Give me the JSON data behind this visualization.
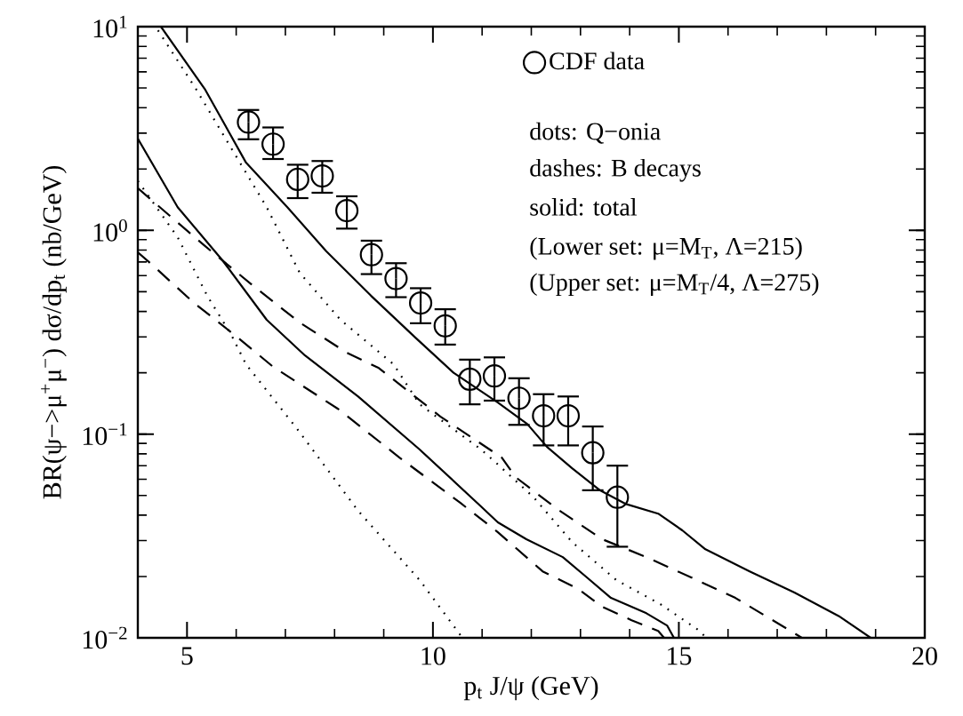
{
  "chart_data": {
    "type": "line",
    "xlabel": "p$_{t}$ J/ψ (GeV)",
    "ylabel": "BR(ψ−>μ$^{+}$μ$^{−}$) dσ/dp$_{t}$ (nb/GeV)",
    "xlim": [
      4,
      20
    ],
    "xticks": [
      5,
      10,
      15,
      20
    ],
    "ylim": [
      0.01,
      10
    ],
    "yticks": [
      {
        "value": 0.01,
        "label": "10$^{−2}$"
      },
      {
        "value": 0.1,
        "label": "10$^{−1}$"
      },
      {
        "value": 1,
        "label": "10$^{0}$"
      },
      {
        "value": 10,
        "label": "10$^{1}$"
      }
    ],
    "log": "y",
    "grid": false,
    "legend": "top right",
    "annotations": [
      "dots: Q−onia",
      "dashes: B decays",
      "solid: total",
      "(Lower set: μ=M$_{T}$, Λ=215)",
      "(Upper set: μ=M$_{T}$/4, Λ=275)"
    ],
    "series": [
      {
        "name": "CDF data",
        "type": "scatter",
        "marker": "circle",
        "color": "#000000",
        "x": [
          6.25,
          6.75,
          7.25,
          7.75,
          8.25,
          8.75,
          9.25,
          9.75,
          10.25,
          10.75,
          11.25,
          11.75,
          12.25,
          12.75,
          13.25,
          13.75
        ],
        "values": [
          3.4,
          2.65,
          1.78,
          1.85,
          1.25,
          0.76,
          0.58,
          0.44,
          0.34,
          0.186,
          0.193,
          0.15,
          0.123,
          0.123,
          0.081,
          0.049
        ],
        "errors": [
          [
            2.8,
            3.9
          ],
          [
            2.24,
            3.2
          ],
          [
            1.44,
            2.1
          ],
          [
            1.53,
            2.19
          ],
          [
            1.02,
            1.47
          ],
          [
            0.61,
            0.89
          ],
          [
            0.47,
            0.69
          ],
          [
            0.35,
            0.52
          ],
          [
            0.275,
            0.41
          ],
          [
            0.14,
            0.232
          ],
          [
            0.146,
            0.238
          ],
          [
            0.111,
            0.188
          ],
          [
            0.088,
            0.157
          ],
          [
            0.088,
            0.153
          ],
          [
            0.053,
            0.109
          ],
          [
            0.028,
            0.07
          ]
        ]
      },
      {
        "line_style": "solid",
        "color": "#000000",
        "x": [
          4.47,
          5.36,
          6.2,
          7.04,
          7.83,
          8.74,
          9.64,
          10.42,
          11.32,
          11.92,
          12.32,
          12.83,
          13.4,
          13.91,
          14.58,
          15.07,
          15.54,
          16.44,
          17.35,
          18.25,
          18.9
        ],
        "values": [
          10,
          4.95,
          2.15,
          1.3,
          0.79,
          0.478,
          0.298,
          0.2,
          0.143,
          0.112,
          0.0865,
          0.068,
          0.0529,
          0.0455,
          0.0407,
          0.0337,
          0.0272,
          0.0212,
          0.0167,
          0.0128,
          0.01
        ]
      },
      {
        "line_style": "dotted",
        "color": "#000000",
        "x": [
          4.41,
          5.18,
          5.9,
          6.62,
          7.29,
          8.12,
          9.2,
          9.73,
          10.98,
          11.32,
          12.05,
          12.83,
          13.73,
          14.63,
          15.43,
          15.55
        ],
        "values": [
          9.6,
          4.95,
          2.53,
          1.3,
          0.62,
          0.364,
          0.22,
          0.14,
          0.084,
          0.071,
          0.0489,
          0.0295,
          0.0192,
          0.0146,
          0.0108,
          0.01
        ]
      },
      {
        "line_style": "dashed",
        "color": "#000000",
        "x": [
          4.0,
          5.36,
          6.31,
          7.29,
          8.25,
          8.9,
          10.15,
          11.4,
          11.68,
          12.53,
          13.44,
          14.34,
          15.25,
          16.15,
          17.06,
          17.5
        ],
        "values": [
          1.61,
          0.84,
          0.543,
          0.353,
          0.251,
          0.211,
          0.122,
          0.0767,
          0.0615,
          0.0428,
          0.0305,
          0.0249,
          0.0198,
          0.0157,
          0.0116,
          0.01
        ]
      },
      {
        "line_style": "solid",
        "color": "#000000",
        "x": [
          4.0,
          4.81,
          5.72,
          6.62,
          7.4,
          8.48,
          9.73,
          10.98,
          11.32,
          11.9,
          12.64,
          13.13,
          13.62,
          14.34,
          14.76,
          14.9
        ],
        "values": [
          2.82,
          1.3,
          0.713,
          0.364,
          0.243,
          0.153,
          0.084,
          0.0441,
          0.0369,
          0.0305,
          0.0249,
          0.0198,
          0.0157,
          0.0132,
          0.0115,
          0.01
        ]
      },
      {
        "line_style": "dotted",
        "color": "#000000",
        "x": [
          4.0,
          4.81,
          5.41,
          5.9,
          6.2,
          7.24,
          8.48,
          9.73,
          10.6
        ],
        "values": [
          1.75,
          0.925,
          0.478,
          0.307,
          0.22,
          0.106,
          0.042,
          0.0192,
          0.01
        ]
      },
      {
        "line_style": "dashed",
        "color": "#000000",
        "x": [
          4.0,
          4.27,
          5.12,
          6.03,
          6.75,
          8.07,
          9.32,
          10.56,
          11.32,
          12.23,
          12.95,
          13.44,
          14.04,
          14.58,
          14.7
        ],
        "values": [
          0.78,
          0.685,
          0.445,
          0.298,
          0.214,
          0.133,
          0.0767,
          0.0459,
          0.033,
          0.0212,
          0.0174,
          0.0142,
          0.0122,
          0.0108,
          0.01
        ]
      }
    ]
  }
}
